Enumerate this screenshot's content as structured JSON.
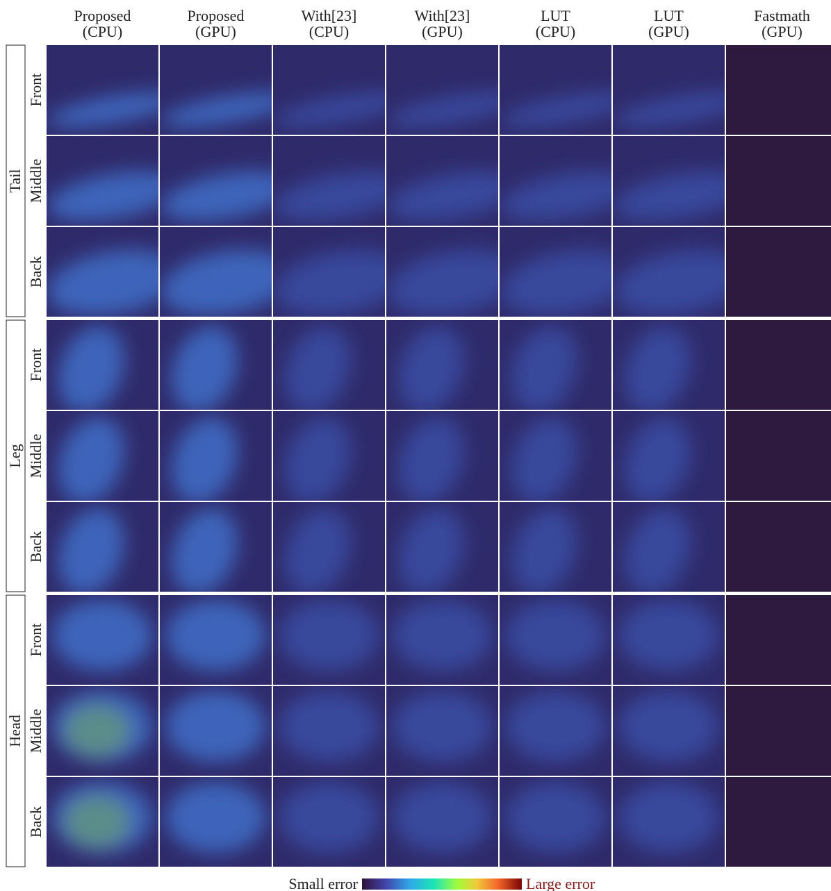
{
  "columns": [
    {
      "line1": "Proposed",
      "line2": "(CPU)"
    },
    {
      "line1": "Proposed",
      "line2": "(GPU)"
    },
    {
      "line1": "With[23]",
      "line2": "(CPU)"
    },
    {
      "line1": "With[23]",
      "line2": "(GPU)"
    },
    {
      "line1": "LUT",
      "line2": "(CPU)"
    },
    {
      "line1": "LUT",
      "line2": "(GPU)"
    },
    {
      "line1": "Fastmath",
      "line2": "(GPU)"
    }
  ],
  "groups": [
    {
      "label": "Tail",
      "rows": [
        "Front",
        "Middle",
        "Back"
      ]
    },
    {
      "label": "Leg",
      "rows": [
        "Front",
        "Middle",
        "Back"
      ]
    },
    {
      "label": "Head",
      "rows": [
        "Front",
        "Middle",
        "Back"
      ]
    }
  ],
  "colorbar": {
    "low": "Small error",
    "high": "Large error"
  }
}
